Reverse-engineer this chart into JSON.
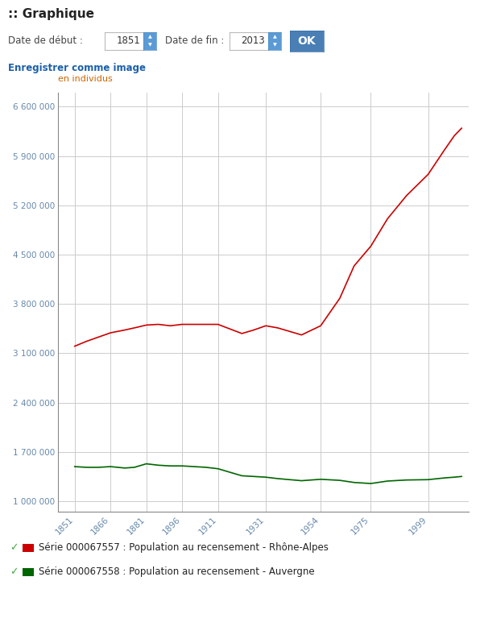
{
  "rhone_alpes": {
    "years": [
      1851,
      1856,
      1861,
      1866,
      1872,
      1876,
      1881,
      1886,
      1891,
      1896,
      1901,
      1906,
      1911,
      1921,
      1926,
      1931,
      1936,
      1946,
      1954,
      1962,
      1968,
      1975,
      1982,
      1990,
      1999,
      2006,
      2010,
      2013
    ],
    "values": [
      3200000,
      3270000,
      3330000,
      3390000,
      3430000,
      3460000,
      3500000,
      3510000,
      3490000,
      3510000,
      3510000,
      3510000,
      3510000,
      3380000,
      3430000,
      3490000,
      3460000,
      3360000,
      3490000,
      3880000,
      4340000,
      4620000,
      5010000,
      5340000,
      5640000,
      5995000,
      6190000,
      6295000
    ]
  },
  "auvergne": {
    "years": [
      1851,
      1856,
      1861,
      1866,
      1872,
      1876,
      1881,
      1886,
      1891,
      1896,
      1901,
      1906,
      1911,
      1921,
      1926,
      1931,
      1936,
      1946,
      1954,
      1962,
      1968,
      1975,
      1982,
      1990,
      1999,
      2006,
      2010,
      2013
    ],
    "values": [
      1490000,
      1480000,
      1480000,
      1490000,
      1470000,
      1480000,
      1530000,
      1510000,
      1500000,
      1500000,
      1490000,
      1480000,
      1460000,
      1360000,
      1350000,
      1340000,
      1320000,
      1290000,
      1310000,
      1295000,
      1265000,
      1250000,
      1285000,
      1300000,
      1305000,
      1330000,
      1340000,
      1350000
    ]
  },
  "rhone_color": "#cc0000",
  "auvergne_color": "#006600",
  "background_color": "#ffffff",
  "grid_color": "#cccccc",
  "ylabel": "en individus",
  "ylabel_color": "#cc6600",
  "yticks": [
    1000000,
    1700000,
    2400000,
    3100000,
    3800000,
    4500000,
    5200000,
    5900000,
    6600000
  ],
  "ytick_labels": [
    "1 000 000",
    "1 700 000",
    "2 400 000",
    "3 100 000",
    "3 800 000",
    "4 500 000",
    "5 200 000",
    "5 900 000",
    "6 600 000"
  ],
  "xtick_years": [
    1851,
    1866,
    1881,
    1896,
    1911,
    1931,
    1954,
    1975,
    1999
  ],
  "xtick_labels": [
    "1851",
    "1866",
    "1881",
    "1896",
    "1911",
    "1931",
    "1954",
    "1975",
    "1999"
  ],
  "ymin": 850000,
  "ymax": 6800000,
  "xmin": 1844,
  "xmax": 2016,
  "legend1_text": "Série 000067557 : Population au recensement - Rhône-Alpes",
  "legend2_text": "Série 000067558 : Population au recensement - Auvergne",
  "title": ":: Graphique",
  "header_text1": "Date de début : ",
  "header_val1": "1851",
  "header_text2": "Date de fin : ",
  "header_val2": "2013",
  "save_text": "Enregistrer comme image",
  "tick_color": "#6688aa",
  "label_color": "#333333",
  "title_color": "#222222",
  "save_color": "#1a5faa",
  "spine_color": "#888888"
}
